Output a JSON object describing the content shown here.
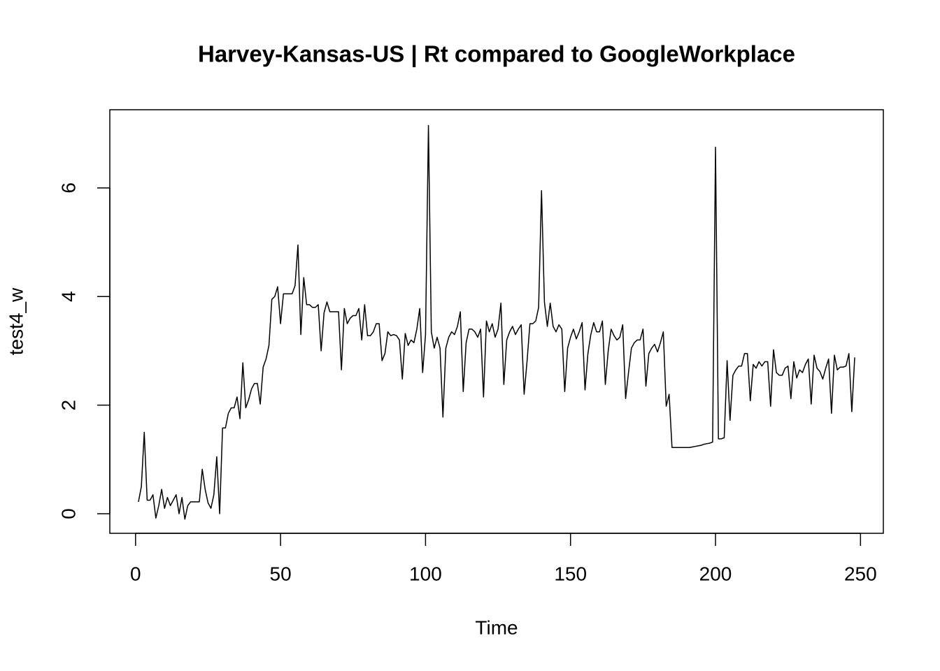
{
  "chart_data": {
    "type": "line",
    "title": "Harvey-Kansas-US | Rt compared to GoogleWorkplace",
    "xlabel": "Time",
    "ylabel": "test4_w",
    "color": "#000000",
    "xlim": [
      -8.88,
      257.88
    ],
    "ylim": [
      -0.36,
      7.44
    ],
    "xticks": [
      0,
      50,
      100,
      150,
      200,
      250
    ],
    "yticks": [
      0,
      2,
      4,
      6
    ],
    "x": [
      1,
      2,
      3,
      4,
      5,
      6,
      7,
      8,
      9,
      10,
      11,
      12,
      13,
      14,
      15,
      16,
      17,
      18,
      19,
      20,
      21,
      22,
      23,
      24,
      25,
      26,
      27,
      28,
      29,
      30,
      31,
      32,
      33,
      34,
      35,
      36,
      37,
      38,
      39,
      40,
      41,
      42,
      43,
      44,
      45,
      46,
      47,
      48,
      49,
      50,
      51,
      52,
      53,
      54,
      55,
      56,
      57,
      58,
      59,
      60,
      61,
      62,
      63,
      64,
      65,
      66,
      67,
      68,
      69,
      70,
      71,
      72,
      73,
      74,
      75,
      76,
      77,
      78,
      79,
      80,
      81,
      82,
      83,
      84,
      85,
      86,
      87,
      88,
      89,
      90,
      91,
      92,
      93,
      94,
      95,
      96,
      97,
      98,
      99,
      100,
      101,
      102,
      103,
      104,
      105,
      106,
      107,
      108,
      109,
      110,
      111,
      112,
      113,
      114,
      115,
      116,
      117,
      118,
      119,
      120,
      121,
      122,
      123,
      124,
      125,
      126,
      127,
      128,
      129,
      130,
      131,
      132,
      133,
      134,
      135,
      136,
      137,
      138,
      139,
      140,
      141,
      142,
      143,
      144,
      145,
      146,
      147,
      148,
      149,
      150,
      151,
      152,
      153,
      154,
      155,
      156,
      157,
      158,
      159,
      160,
      161,
      162,
      163,
      164,
      165,
      166,
      167,
      168,
      169,
      170,
      171,
      172,
      173,
      174,
      175,
      176,
      177,
      178,
      179,
      180,
      181,
      182,
      183,
      184,
      185,
      186,
      187,
      188,
      189,
      190,
      191,
      192,
      193,
      194,
      195,
      196,
      197,
      198,
      199,
      200,
      201,
      202,
      203,
      204,
      205,
      206,
      207,
      208,
      209,
      210,
      211,
      212,
      213,
      214,
      215,
      216,
      217,
      218,
      219,
      220,
      221,
      222,
      223,
      224,
      225,
      226,
      227,
      228,
      229,
      230,
      231,
      232,
      233,
      234,
      235,
      236,
      237,
      238,
      239,
      240,
      241,
      242,
      243,
      244,
      245,
      246,
      247,
      248
    ],
    "values": [
      0.22,
      0.5,
      1.5,
      0.25,
      0.25,
      0.35,
      -0.08,
      0.15,
      0.45,
      0.1,
      0.3,
      0.15,
      0.25,
      0.35,
      0.0,
      0.3,
      -0.1,
      0.15,
      0.22,
      0.22,
      0.22,
      0.22,
      0.82,
      0.45,
      0.2,
      0.1,
      0.35,
      1.05,
      0.0,
      1.58,
      1.58,
      1.85,
      1.95,
      1.95,
      2.15,
      1.75,
      2.78,
      1.95,
      2.1,
      2.3,
      2.4,
      2.4,
      2.02,
      2.7,
      2.85,
      3.1,
      3.95,
      4.0,
      4.18,
      3.5,
      4.05,
      4.05,
      4.05,
      4.05,
      4.2,
      4.95,
      3.3,
      4.35,
      3.85,
      3.85,
      3.8,
      3.8,
      3.85,
      3.0,
      3.7,
      3.9,
      3.72,
      3.72,
      3.72,
      3.72,
      2.65,
      3.78,
      3.5,
      3.6,
      3.65,
      3.65,
      3.78,
      3.2,
      3.85,
      3.28,
      3.28,
      3.35,
      3.5,
      3.5,
      2.82,
      2.95,
      3.35,
      3.28,
      3.3,
      3.28,
      3.2,
      2.48,
      3.32,
      3.1,
      3.2,
      3.15,
      3.4,
      3.78,
      2.6,
      3.3,
      7.15,
      3.35,
      3.05,
      3.25,
      3.05,
      1.78,
      3.05,
      3.25,
      3.35,
      3.3,
      3.45,
      3.72,
      2.25,
      3.15,
      3.4,
      3.4,
      3.35,
      3.25,
      3.4,
      2.15,
      3.55,
      3.35,
      3.5,
      3.25,
      3.4,
      3.88,
      2.38,
      3.2,
      3.35,
      3.45,
      3.3,
      3.4,
      3.48,
      2.2,
      2.8,
      3.5,
      3.5,
      3.55,
      3.8,
      5.95,
      3.9,
      3.45,
      3.88,
      3.45,
      3.35,
      3.48,
      3.4,
      2.25,
      3.05,
      3.25,
      3.4,
      3.22,
      3.35,
      3.52,
      2.28,
      2.95,
      3.3,
      3.52,
      3.35,
      3.35,
      3.55,
      2.38,
      3.0,
      3.4,
      3.28,
      3.2,
      3.25,
      3.48,
      2.12,
      2.6,
      3.05,
      3.15,
      3.2,
      3.2,
      3.4,
      2.35,
      2.95,
      3.05,
      3.12,
      2.98,
      3.15,
      3.35,
      1.98,
      2.2,
      1.22,
      1.22,
      1.22,
      1.22,
      1.22,
      1.22,
      1.22,
      1.23,
      1.24,
      1.25,
      1.26,
      1.28,
      1.29,
      1.3,
      1.32,
      6.75,
      1.38,
      1.38,
      1.4,
      2.82,
      1.72,
      2.55,
      2.65,
      2.72,
      2.72,
      2.95,
      2.95,
      2.08,
      2.75,
      2.68,
      2.8,
      2.72,
      2.8,
      2.8,
      1.98,
      3.02,
      2.6,
      2.55,
      2.55,
      2.68,
      2.72,
      2.12,
      2.8,
      2.5,
      2.65,
      2.6,
      2.75,
      2.85,
      2.02,
      2.92,
      2.68,
      2.62,
      2.48,
      2.68,
      2.85,
      1.85,
      2.92,
      2.65,
      2.7,
      2.7,
      2.72,
      2.95,
      1.88,
      2.88
    ]
  }
}
